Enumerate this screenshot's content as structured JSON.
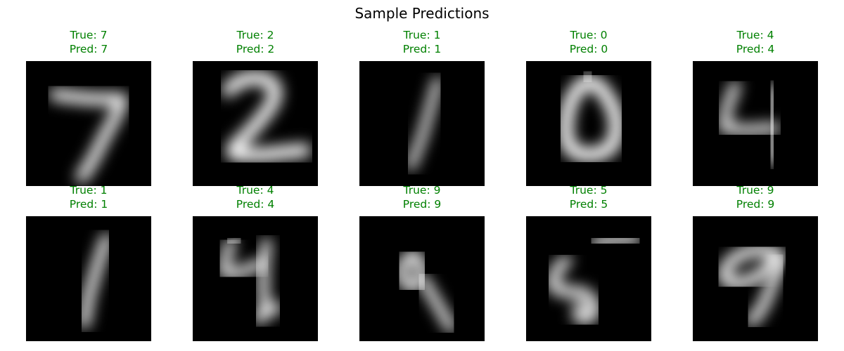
{
  "title": "Sample Predictions",
  "correct_color": "#008000",
  "samples": [
    {
      "true_label": "True: 7",
      "pred_label": "Pred: 7",
      "digit": "7"
    },
    {
      "true_label": "True: 2",
      "pred_label": "Pred: 2",
      "digit": "2"
    },
    {
      "true_label": "True: 1",
      "pred_label": "Pred: 1",
      "digit": "1"
    },
    {
      "true_label": "True: 0",
      "pred_label": "Pred: 0",
      "digit": "0"
    },
    {
      "true_label": "True: 4",
      "pred_label": "Pred: 4",
      "digit": "4"
    },
    {
      "true_label": "True: 1",
      "pred_label": "Pred: 1",
      "digit": "1"
    },
    {
      "true_label": "True: 4",
      "pred_label": "Pred: 4",
      "digit": "4"
    },
    {
      "true_label": "True: 9",
      "pred_label": "Pred: 9",
      "digit": "9"
    },
    {
      "true_label": "True: 5",
      "pred_label": "Pred: 5",
      "digit": "5"
    },
    {
      "true_label": "True: 9",
      "pred_label": "Pred: 9",
      "digit": "9"
    }
  ]
}
